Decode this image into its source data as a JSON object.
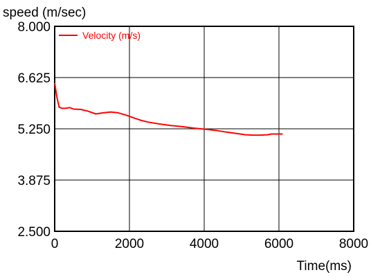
{
  "chart_data": {
    "type": "line",
    "ylabel": "speed (m/sec)",
    "xlabel": "Time(ms)",
    "xlim": [
      0,
      8000
    ],
    "ylim": [
      2.5,
      8.0
    ],
    "x_ticks": [
      0,
      2000,
      4000,
      6000,
      8000
    ],
    "y_ticks": [
      2.5,
      3.875,
      5.25,
      6.625,
      8.0
    ],
    "x_tick_labels": [
      "0",
      "2000",
      "4000",
      "6000",
      "8000"
    ],
    "y_tick_labels": [
      "2.500",
      "3.875",
      "5.250",
      "6.625",
      "8.000"
    ],
    "grid": true,
    "legend_position": "top-left",
    "series": [
      {
        "name": "Velocity (m/s)",
        "color": "#ff0000",
        "points": [
          [
            0,
            6.48
          ],
          [
            60,
            6.1
          ],
          [
            120,
            5.83
          ],
          [
            200,
            5.8
          ],
          [
            300,
            5.8
          ],
          [
            400,
            5.82
          ],
          [
            500,
            5.78
          ],
          [
            700,
            5.77
          ],
          [
            900,
            5.72
          ],
          [
            1100,
            5.65
          ],
          [
            1300,
            5.68
          ],
          [
            1500,
            5.7
          ],
          [
            1700,
            5.68
          ],
          [
            1900,
            5.62
          ],
          [
            2100,
            5.55
          ],
          [
            2300,
            5.48
          ],
          [
            2500,
            5.43
          ],
          [
            2800,
            5.38
          ],
          [
            3100,
            5.34
          ],
          [
            3400,
            5.31
          ],
          [
            3700,
            5.27
          ],
          [
            4000,
            5.24
          ],
          [
            4300,
            5.21
          ],
          [
            4600,
            5.16
          ],
          [
            4900,
            5.12
          ],
          [
            5100,
            5.09
          ],
          [
            5300,
            5.08
          ],
          [
            5500,
            5.08
          ],
          [
            5700,
            5.09
          ],
          [
            5800,
            5.11
          ],
          [
            6000,
            5.11
          ],
          [
            6100,
            5.11
          ]
        ]
      }
    ]
  }
}
